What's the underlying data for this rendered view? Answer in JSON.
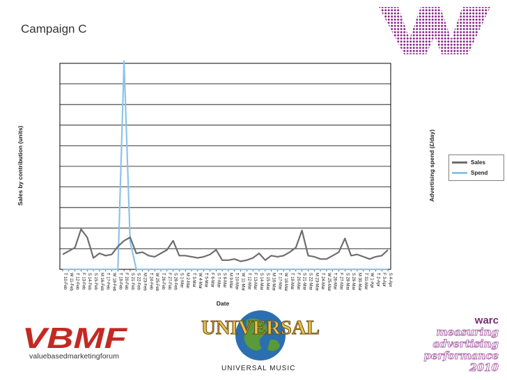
{
  "title": "Campaign C",
  "colors": {
    "sales": "#6d6d6d",
    "spend": "#8ec3e6",
    "brand_purple": "#8a2a8a"
  },
  "chart_data": {
    "type": "line",
    "title": "Campaign C",
    "xlabel": "Date",
    "ylabel": "Sales by contribution (units)",
    "y2label": "Advertising spend (£/day)",
    "grid": true,
    "legend_position": "right",
    "ylim": [
      0,
      9
    ],
    "categories": [
      "T 10-Feb",
      "W 11-Feb",
      "T 12-Feb",
      "F 13-Feb",
      "S 14-Feb",
      "S 15-Feb",
      "M 16-Feb",
      "T 17-Feb",
      "W 18-Feb",
      "T 19-Feb",
      "F 20-Feb",
      "S 21-Feb",
      "S 22-Feb",
      "M 23-Feb",
      "T 24-Feb",
      "W 25-Feb",
      "T 26-Feb",
      "F 27-Feb",
      "S 28-Feb",
      "S 1-Mar",
      "M 2-Mar",
      "T 3-Mar",
      "W 4-Mar",
      "T 5-Mar",
      "F 6-Mar",
      "S 7-Mar",
      "S 8-Mar",
      "M 9-Mar",
      "T 10-Mar",
      "W 11-Mar",
      "T 12-Mar",
      "F 13-Mar",
      "S 14-Mar",
      "S 15-Mar",
      "M 16-Mar",
      "T 17-Mar",
      "W 18-Mar",
      "T 19-Mar",
      "F 20-Mar",
      "S 21-Mar",
      "S 22-Mar",
      "M 23-Mar",
      "T 24-Mar",
      "W 25-Mar",
      "T 26-Mar",
      "F 27-Mar",
      "S 28-Mar",
      "S 29-Mar",
      "M 30-Mar",
      "T 31-Mar",
      "W 1-Apr",
      "T 2-Apr",
      "F 3-Apr",
      "S 4-Apr"
    ],
    "series": [
      {
        "name": "Sales",
        "values": [
          0.65,
          0.8,
          0.95,
          1.75,
          1.4,
          0.5,
          0.7,
          0.6,
          0.65,
          1.0,
          1.25,
          1.4,
          0.7,
          0.75,
          0.6,
          0.55,
          0.7,
          0.85,
          1.25,
          0.6,
          0.6,
          0.55,
          0.5,
          0.55,
          0.65,
          0.85,
          0.4,
          0.4,
          0.45,
          0.35,
          0.4,
          0.5,
          0.7,
          0.4,
          0.6,
          0.55,
          0.6,
          0.75,
          0.95,
          1.7,
          0.6,
          0.55,
          0.45,
          0.45,
          0.6,
          0.75,
          1.35,
          0.6,
          0.65,
          0.55,
          0.45,
          0.55,
          0.6,
          0.85
        ]
      },
      {
        "name": "Spend",
        "values": [
          0,
          0,
          0,
          0,
          0,
          0,
          0,
          0,
          0,
          0,
          9.1,
          1.2,
          0,
          0,
          0,
          0,
          0,
          0,
          0,
          0,
          0,
          0,
          0,
          0,
          0,
          0,
          0,
          0,
          0,
          0,
          0,
          0,
          0,
          0,
          0,
          0,
          0,
          0,
          0,
          0,
          0,
          0,
          0,
          0,
          0,
          0,
          0,
          0,
          0,
          0,
          0,
          0,
          0,
          0
        ]
      }
    ]
  },
  "logos": {
    "vbmf_text": "VBMF",
    "vbmf_sub": "valuebasedmarketingforum",
    "universal_text": "UNIVERSAL",
    "universal_music": "UNIVERSAL MUSIC",
    "warc_brand": "warc",
    "warc_lines": [
      "measuring",
      "advertising",
      "performance",
      "2010"
    ]
  }
}
